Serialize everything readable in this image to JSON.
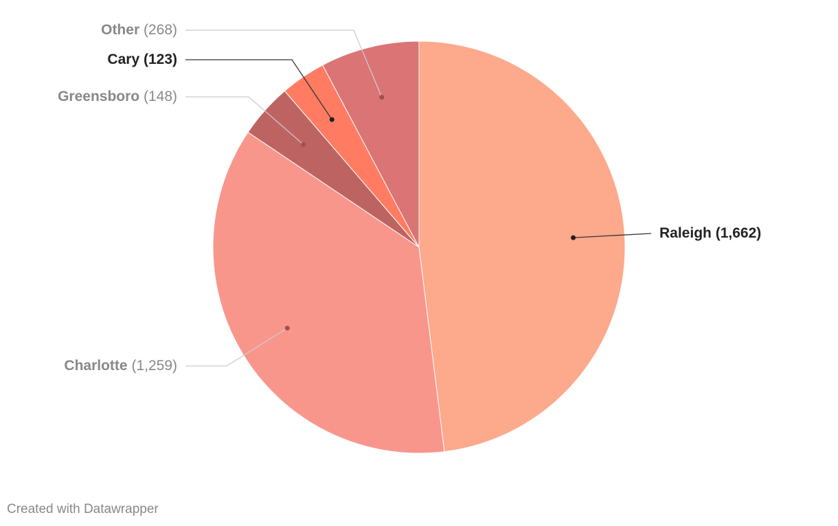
{
  "chart_data": {
    "type": "pie",
    "categories": [
      "Raleigh",
      "Charlotte",
      "Greensboro",
      "Cary",
      "Other"
    ],
    "values": [
      1662,
      1259,
      148,
      123,
      268
    ],
    "value_labels": [
      "(1,662)",
      "(1,259)",
      "(148)",
      "(123)",
      "(268)"
    ],
    "colors": [
      "#fda98b",
      "#f9968c",
      "#bd6462",
      "#ff7c62",
      "#db7474"
    ],
    "highlight": [
      true,
      false,
      false,
      true,
      false
    ],
    "credit": "Created with Datawrapper"
  }
}
